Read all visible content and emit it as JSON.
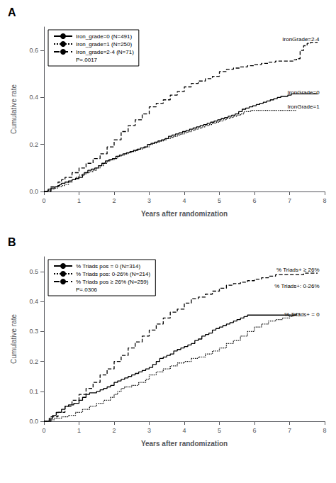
{
  "chart_data": [
    {
      "type": "step",
      "title": "A",
      "subtitle": "P=.0017",
      "xlabel": "Years after randomization",
      "ylabel": "Cumulative rate",
      "xlim": [
        0,
        8
      ],
      "ylim": [
        0,
        0.7
      ],
      "xticks": [
        0,
        1,
        2,
        3,
        4,
        5,
        6,
        7,
        8
      ],
      "yticks": [
        {
          "value": 0,
          "label": "0.0"
        },
        0.2,
        0.4,
        0.6
      ],
      "grid": false,
      "legend": "upper left",
      "series": [
        {
          "name": "Iron_grade=0 (N=491)",
          "color": "#000000",
          "line_style": "solid",
          "x": [
            0,
            0.12,
            0.2,
            0.3,
            0.4,
            0.45,
            0.5,
            0.6,
            0.7,
            0.8,
            0.9,
            1.0,
            1.1,
            1.15,
            1.25,
            1.35,
            1.45,
            1.55,
            1.65,
            1.75,
            1.85,
            1.95,
            2.05,
            2.15,
            2.25,
            2.35,
            2.45,
            2.55,
            2.65,
            2.75,
            2.85,
            2.95,
            3.05,
            3.15,
            3.25,
            3.35,
            3.45,
            3.55,
            3.65,
            3.75,
            3.85,
            3.95,
            4.05,
            4.15,
            4.25,
            4.35,
            4.45,
            4.55,
            4.65,
            4.75,
            4.85,
            4.95,
            5.05,
            5.15,
            5.25,
            5.35,
            5.45,
            5.55,
            5.65,
            5.75,
            5.85,
            5.95,
            6.05,
            6.15,
            6.25,
            6.35,
            6.45,
            6.55,
            6.65,
            6.75,
            6.85,
            6.95,
            7.05,
            7.2,
            7.4,
            7.6,
            7.8
          ],
          "values": [
            0,
            0.01,
            0.015,
            0.02,
            0.025,
            0.03,
            0.035,
            0.04,
            0.045,
            0.05,
            0.055,
            0.06,
            0.07,
            0.08,
            0.09,
            0.095,
            0.1,
            0.11,
            0.12,
            0.13,
            0.135,
            0.14,
            0.15,
            0.155,
            0.16,
            0.165,
            0.17,
            0.175,
            0.18,
            0.185,
            0.19,
            0.2,
            0.205,
            0.21,
            0.215,
            0.22,
            0.225,
            0.235,
            0.24,
            0.245,
            0.25,
            0.255,
            0.26,
            0.265,
            0.27,
            0.275,
            0.28,
            0.285,
            0.29,
            0.295,
            0.3,
            0.305,
            0.31,
            0.315,
            0.32,
            0.325,
            0.33,
            0.34,
            0.35,
            0.355,
            0.36,
            0.365,
            0.37,
            0.375,
            0.38,
            0.385,
            0.39,
            0.395,
            0.4,
            0.405,
            0.405,
            0.41,
            0.415,
            0.415,
            0.415,
            0.415,
            0.415
          ]
        },
        {
          "name": "Iron_grade=1 (N=250)",
          "color": "#000000",
          "line_style": "dotted",
          "x": [
            0,
            0.1,
            0.2,
            0.3,
            0.4,
            0.5,
            0.6,
            0.7,
            0.8,
            0.9,
            1.0,
            1.1,
            1.2,
            1.3,
            1.4,
            1.5,
            1.6,
            1.7,
            1.8,
            1.9,
            2.0,
            2.1,
            2.2,
            2.3,
            2.4,
            2.5,
            2.6,
            2.7,
            2.8,
            2.9,
            3.0,
            3.1,
            3.2,
            3.3,
            3.4,
            3.5,
            3.6,
            3.7,
            3.8,
            3.9,
            4.0,
            4.1,
            4.2,
            4.3,
            4.4,
            4.5,
            4.6,
            4.7,
            4.8,
            4.9,
            5.0,
            5.1,
            5.2,
            5.3,
            5.4,
            5.5,
            5.6,
            5.7,
            5.8,
            5.9,
            6.0,
            6.1,
            6.2,
            6.3,
            6.4,
            6.5,
            6.6,
            6.7,
            6.8,
            6.9,
            7.0,
            7.1,
            7.2
          ],
          "values": [
            0,
            0.005,
            0.01,
            0.015,
            0.02,
            0.025,
            0.03,
            0.04,
            0.05,
            0.06,
            0.07,
            0.075,
            0.08,
            0.085,
            0.09,
            0.1,
            0.11,
            0.12,
            0.13,
            0.135,
            0.14,
            0.15,
            0.155,
            0.16,
            0.165,
            0.17,
            0.175,
            0.18,
            0.185,
            0.19,
            0.2,
            0.205,
            0.21,
            0.215,
            0.22,
            0.225,
            0.23,
            0.235,
            0.24,
            0.245,
            0.25,
            0.255,
            0.26,
            0.265,
            0.27,
            0.275,
            0.28,
            0.285,
            0.29,
            0.295,
            0.3,
            0.305,
            0.31,
            0.315,
            0.32,
            0.325,
            0.33,
            0.34,
            0.34,
            0.345,
            0.345,
            0.345,
            0.345,
            0.345,
            0.345,
            0.345,
            0.345,
            0.345,
            0.345,
            0.345,
            0.345,
            0.345,
            0.345
          ]
        },
        {
          "name": "Iron_grade=2-4 (N=71)",
          "color": "#000000",
          "line_style": "dashed",
          "x": [
            0,
            0.2,
            0.4,
            0.5,
            0.6,
            0.8,
            1.0,
            1.2,
            1.4,
            1.6,
            1.8,
            2.0,
            2.2,
            2.4,
            2.6,
            2.8,
            3.0,
            3.2,
            3.4,
            3.6,
            3.8,
            4.0,
            4.2,
            4.4,
            4.6,
            4.8,
            5.0,
            5.2,
            5.4,
            5.6,
            5.8,
            6.0,
            6.2,
            6.4,
            6.6,
            6.8,
            7.0,
            7.1,
            7.2,
            7.3,
            7.4,
            7.5,
            7.6,
            7.8
          ],
          "values": [
            0,
            0.02,
            0.04,
            0.05,
            0.06,
            0.08,
            0.1,
            0.12,
            0.14,
            0.16,
            0.19,
            0.22,
            0.255,
            0.28,
            0.305,
            0.33,
            0.36,
            0.375,
            0.39,
            0.41,
            0.425,
            0.445,
            0.46,
            0.47,
            0.48,
            0.49,
            0.51,
            0.52,
            0.525,
            0.53,
            0.535,
            0.54,
            0.545,
            0.55,
            0.555,
            0.555,
            0.555,
            0.56,
            0.565,
            0.6,
            0.62,
            0.63,
            0.635,
            0.635
          ]
        }
      ],
      "annotations": [
        {
          "text": "IronGrade=2-4",
          "x": 7.85,
          "y": 0.635
        },
        {
          "text": "IronGrade=0",
          "x": 7.85,
          "y": 0.41
        },
        {
          "text": "IronGrade=1",
          "x": 7.85,
          "y": 0.348
        }
      ]
    },
    {
      "type": "step",
      "title": "B",
      "subtitle": "P=.0306",
      "xlabel": "Years after randomization",
      "ylabel": "Cumulative rate",
      "xlim": [
        0,
        8
      ],
      "ylim": [
        0,
        0.55
      ],
      "xticks": [
        0,
        1,
        2,
        3,
        4,
        5,
        6,
        7,
        8
      ],
      "yticks": [
        {
          "value": 0,
          "label": "0.0"
        },
        0.1,
        0.2,
        0.3,
        0.4,
        0.5
      ],
      "grid": false,
      "legend": "upper left",
      "series": [
        {
          "name": "% Triads pos = 0 (N=314)",
          "color": "#000000",
          "line_style": "solid",
          "x": [
            0,
            0.15,
            0.25,
            0.35,
            0.5,
            0.6,
            0.7,
            0.85,
            1.0,
            1.1,
            1.2,
            1.3,
            1.5,
            1.6,
            1.7,
            1.8,
            1.9,
            2.0,
            2.1,
            2.2,
            2.3,
            2.4,
            2.5,
            2.6,
            2.7,
            2.8,
            2.9,
            3.0,
            3.1,
            3.2,
            3.3,
            3.4,
            3.5,
            3.6,
            3.7,
            3.8,
            3.9,
            4.0,
            4.1,
            4.2,
            4.3,
            4.4,
            4.5,
            4.6,
            4.7,
            4.8,
            4.9,
            5.0,
            5.1,
            5.2,
            5.3,
            5.4,
            5.5,
            5.6,
            5.7,
            5.8,
            5.9,
            6.0,
            6.1,
            6.2,
            6.3,
            6.4,
            6.5,
            6.6,
            6.7,
            6.8,
            6.9,
            7.0,
            7.1,
            7.2
          ],
          "values": [
            0,
            0.01,
            0.02,
            0.03,
            0.04,
            0.05,
            0.055,
            0.06,
            0.07,
            0.08,
            0.09,
            0.095,
            0.1,
            0.105,
            0.11,
            0.115,
            0.12,
            0.13,
            0.135,
            0.14,
            0.145,
            0.15,
            0.155,
            0.16,
            0.165,
            0.17,
            0.175,
            0.18,
            0.19,
            0.2,
            0.21,
            0.215,
            0.22,
            0.225,
            0.235,
            0.24,
            0.245,
            0.25,
            0.255,
            0.26,
            0.27,
            0.275,
            0.285,
            0.29,
            0.295,
            0.305,
            0.31,
            0.315,
            0.32,
            0.325,
            0.33,
            0.335,
            0.34,
            0.345,
            0.35,
            0.355,
            0.355,
            0.355,
            0.355,
            0.355,
            0.355,
            0.355,
            0.355,
            0.355,
            0.355,
            0.355,
            0.355,
            0.355,
            0.355,
            0.355
          ]
        },
        {
          "name": "% Triads pos: 0-26% (N=214)",
          "color": "#000000",
          "line_style": "dotted",
          "x": [
            0,
            0.15,
            0.3,
            0.5,
            0.7,
            0.9,
            1.1,
            1.3,
            1.5,
            1.7,
            1.9,
            2.0,
            2.1,
            2.2,
            2.3,
            2.5,
            2.7,
            2.9,
            3.0,
            3.2,
            3.4,
            3.6,
            3.8,
            4.0,
            4.2,
            4.4,
            4.6,
            4.8,
            5.0,
            5.2,
            5.4,
            5.6,
            5.8,
            6.0,
            6.2,
            6.4,
            6.6,
            6.8,
            7.0,
            7.1,
            7.2,
            7.3
          ],
          "values": [
            0,
            0.005,
            0.01,
            0.015,
            0.02,
            0.03,
            0.04,
            0.05,
            0.06,
            0.07,
            0.08,
            0.09,
            0.1,
            0.11,
            0.115,
            0.12,
            0.13,
            0.14,
            0.155,
            0.165,
            0.175,
            0.185,
            0.195,
            0.2,
            0.21,
            0.215,
            0.225,
            0.235,
            0.245,
            0.26,
            0.27,
            0.285,
            0.3,
            0.315,
            0.325,
            0.335,
            0.34,
            0.345,
            0.35,
            0.355,
            0.36,
            0.36
          ]
        },
        {
          "name": "% Triads pos ≥ 26% (N=259)",
          "color": "#000000",
          "line_style": "dashed",
          "x": [
            0,
            0.2,
            0.4,
            0.6,
            0.8,
            1.0,
            1.2,
            1.4,
            1.6,
            1.8,
            2.0,
            2.2,
            2.4,
            2.6,
            2.8,
            3.0,
            3.2,
            3.4,
            3.6,
            3.8,
            4.0,
            4.2,
            4.4,
            4.6,
            4.8,
            5.0,
            5.2,
            5.4,
            5.6,
            5.8,
            6.0,
            6.2,
            6.4,
            6.6,
            6.8,
            7.0,
            7.1,
            7.2,
            7.3,
            7.4,
            7.5,
            7.6,
            7.7,
            7.8
          ],
          "values": [
            0,
            0.015,
            0.03,
            0.05,
            0.07,
            0.09,
            0.11,
            0.13,
            0.155,
            0.175,
            0.2,
            0.22,
            0.245,
            0.265,
            0.285,
            0.305,
            0.325,
            0.345,
            0.365,
            0.375,
            0.395,
            0.41,
            0.415,
            0.425,
            0.435,
            0.445,
            0.455,
            0.46,
            0.465,
            0.47,
            0.475,
            0.48,
            0.485,
            0.49,
            0.49,
            0.49,
            0.49,
            0.49,
            0.49,
            0.495,
            0.495,
            0.495,
            0.495,
            0.495
          ]
        }
      ],
      "annotations": [
        {
          "text": "% Triads+ ≥ 26%",
          "x": 7.85,
          "y": 0.497
        },
        {
          "text": "% Triads+: 0-26%",
          "x": 7.85,
          "y": 0.443
        },
        {
          "text": "% Triads+ = 0",
          "x": 7.85,
          "y": 0.348
        }
      ]
    }
  ]
}
